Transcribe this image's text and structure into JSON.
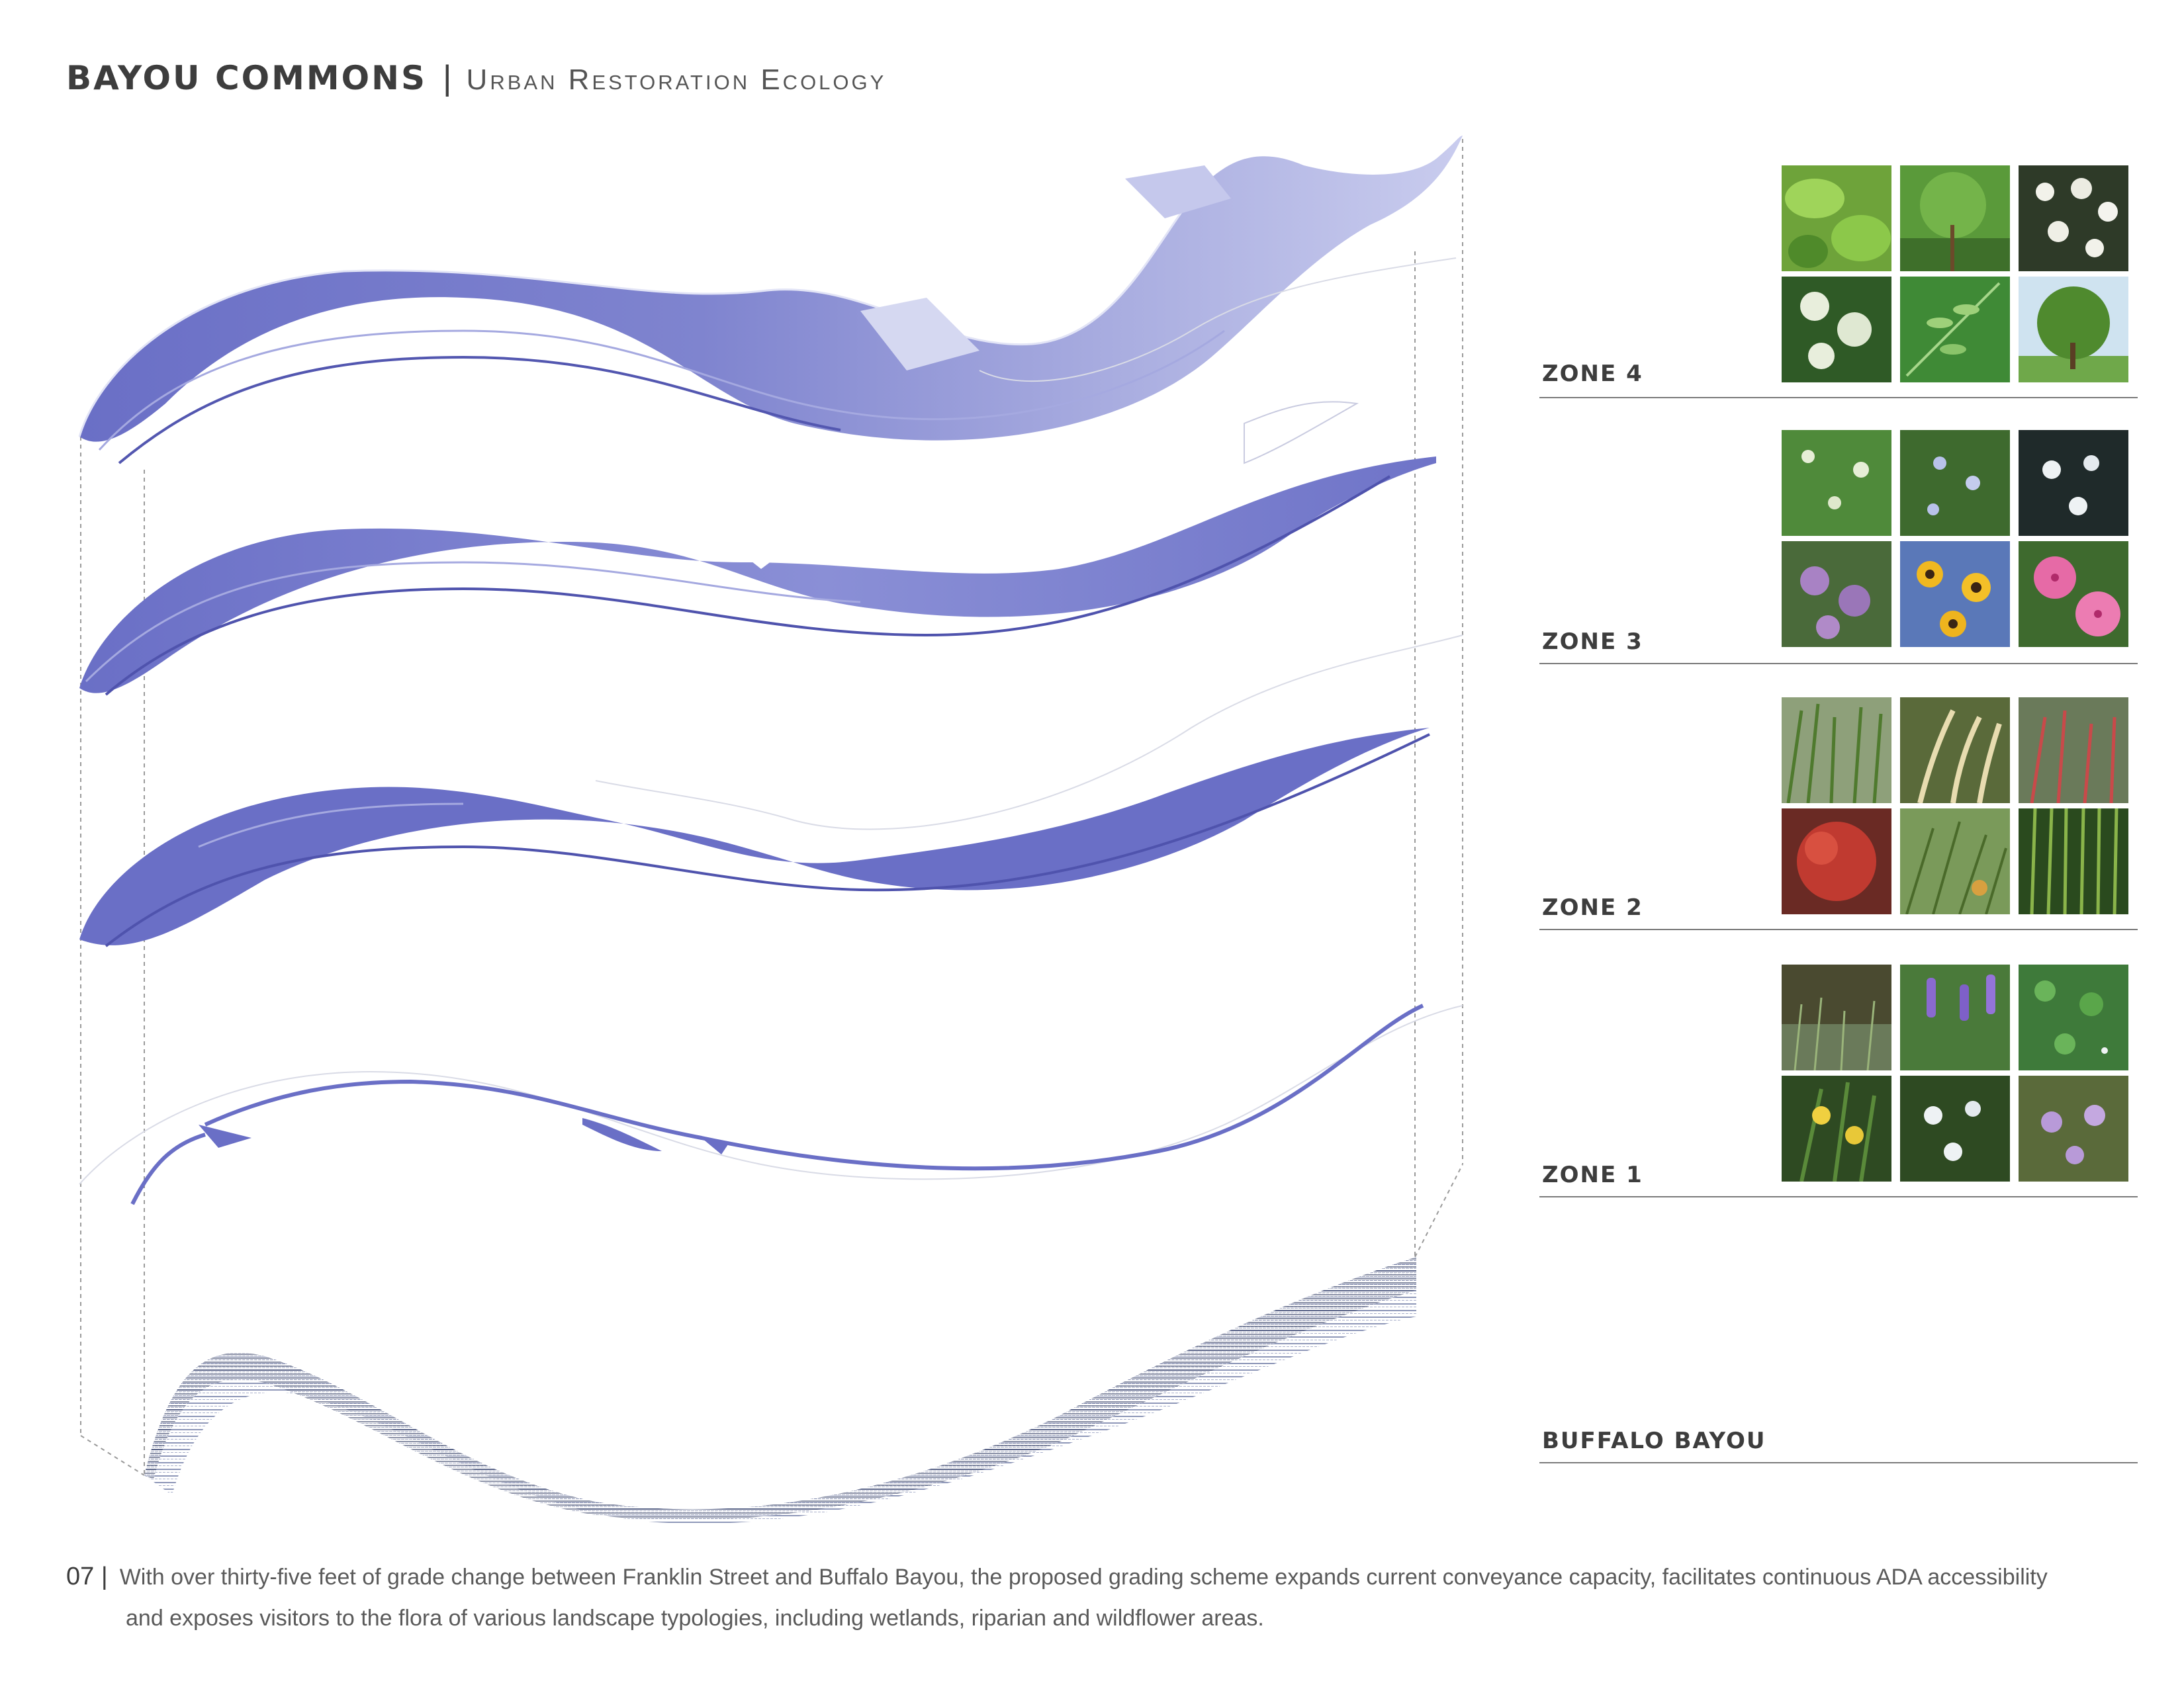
{
  "header": {
    "title": "BAYOU COMMONS",
    "separator": "|",
    "subtitle": "Urban Restoration Ecology"
  },
  "layers": [
    {
      "label": "ZONE 4",
      "planting": [
        "broadleaf-shrub",
        "understory-tree",
        "flowering-dogwood",
        "white-flowering-shrub",
        "compound-leaf-canopy",
        "shade-tree"
      ]
    },
    {
      "label": "ZONE 3",
      "planting": [
        "white-umbel-wildflower",
        "pale-blue-wildflower",
        "white-star-flower",
        "purple-coneflower",
        "black-eyed-susan",
        "pink-rose-mallow"
      ]
    },
    {
      "label": "ZONE 2",
      "planting": [
        "tall-green-grass",
        "seedhead-grass",
        "red-tipped-grass",
        "red-switchgrass",
        "mixed-meadow-grass",
        "upright-rush"
      ]
    },
    {
      "label": "ZONE 1",
      "planting": [
        "wetland-reeds",
        "pickerelweed",
        "water-clover",
        "yellow-iris",
        "white-iris",
        "lavender-iris"
      ]
    },
    {
      "label": "BUFFALO BAYOU",
      "planting": []
    }
  ],
  "colors": {
    "zone_fill": "#6a6fc6",
    "zone_fill_light": "#d5d8f1",
    "zone_line": "#8a8fd6",
    "water_dark": "#2f3a60",
    "water_mid": "#8e97b8",
    "leader": "#9a9a9a",
    "rule": "#7a7a7a"
  },
  "caption": {
    "number": "07 |",
    "line1": "With over thirty-five feet of grade change between Franklin Street and Buffalo Bayou, the proposed grading scheme expands current conveyance capacity, facilitates continuous ADA accessibility",
    "line2": "and exposes visitors to the flora of various landscape typologies, including wetlands, riparian and wildflower areas."
  }
}
